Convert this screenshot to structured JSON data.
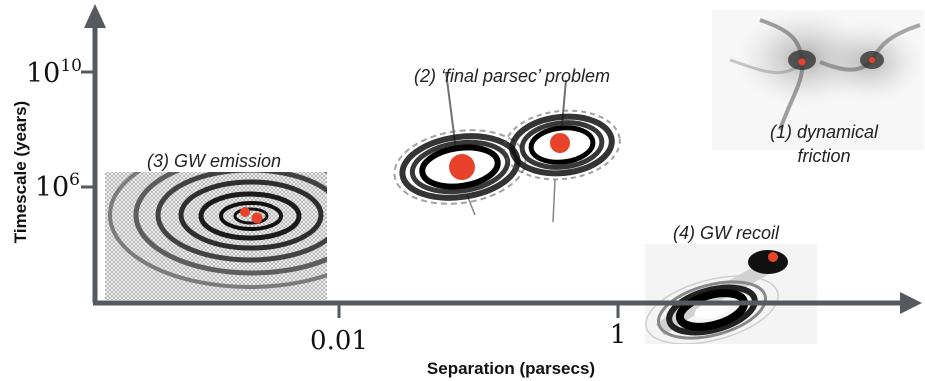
{
  "axes": {
    "x_label": "Separation (parsecs)",
    "y_label": "Timescale (years)",
    "x_ticks": [
      "0.01",
      "1"
    ],
    "y_ticks": [
      {
        "base": "10",
        "exp": "10"
      },
      {
        "base": "10",
        "exp": "6"
      }
    ],
    "axis_color": "#555a60"
  },
  "stages": {
    "dynamical_friction": {
      "line1": "(1) dynamical",
      "line2": "friction"
    },
    "final_parsec": {
      "label": "(2) ‘final parsec’ problem"
    },
    "gw_emission": {
      "label": "(3) GW emission"
    },
    "gw_recoil": {
      "label": "(4) GW recoil"
    }
  },
  "colors": {
    "black_hole": "#e8432a"
  }
}
